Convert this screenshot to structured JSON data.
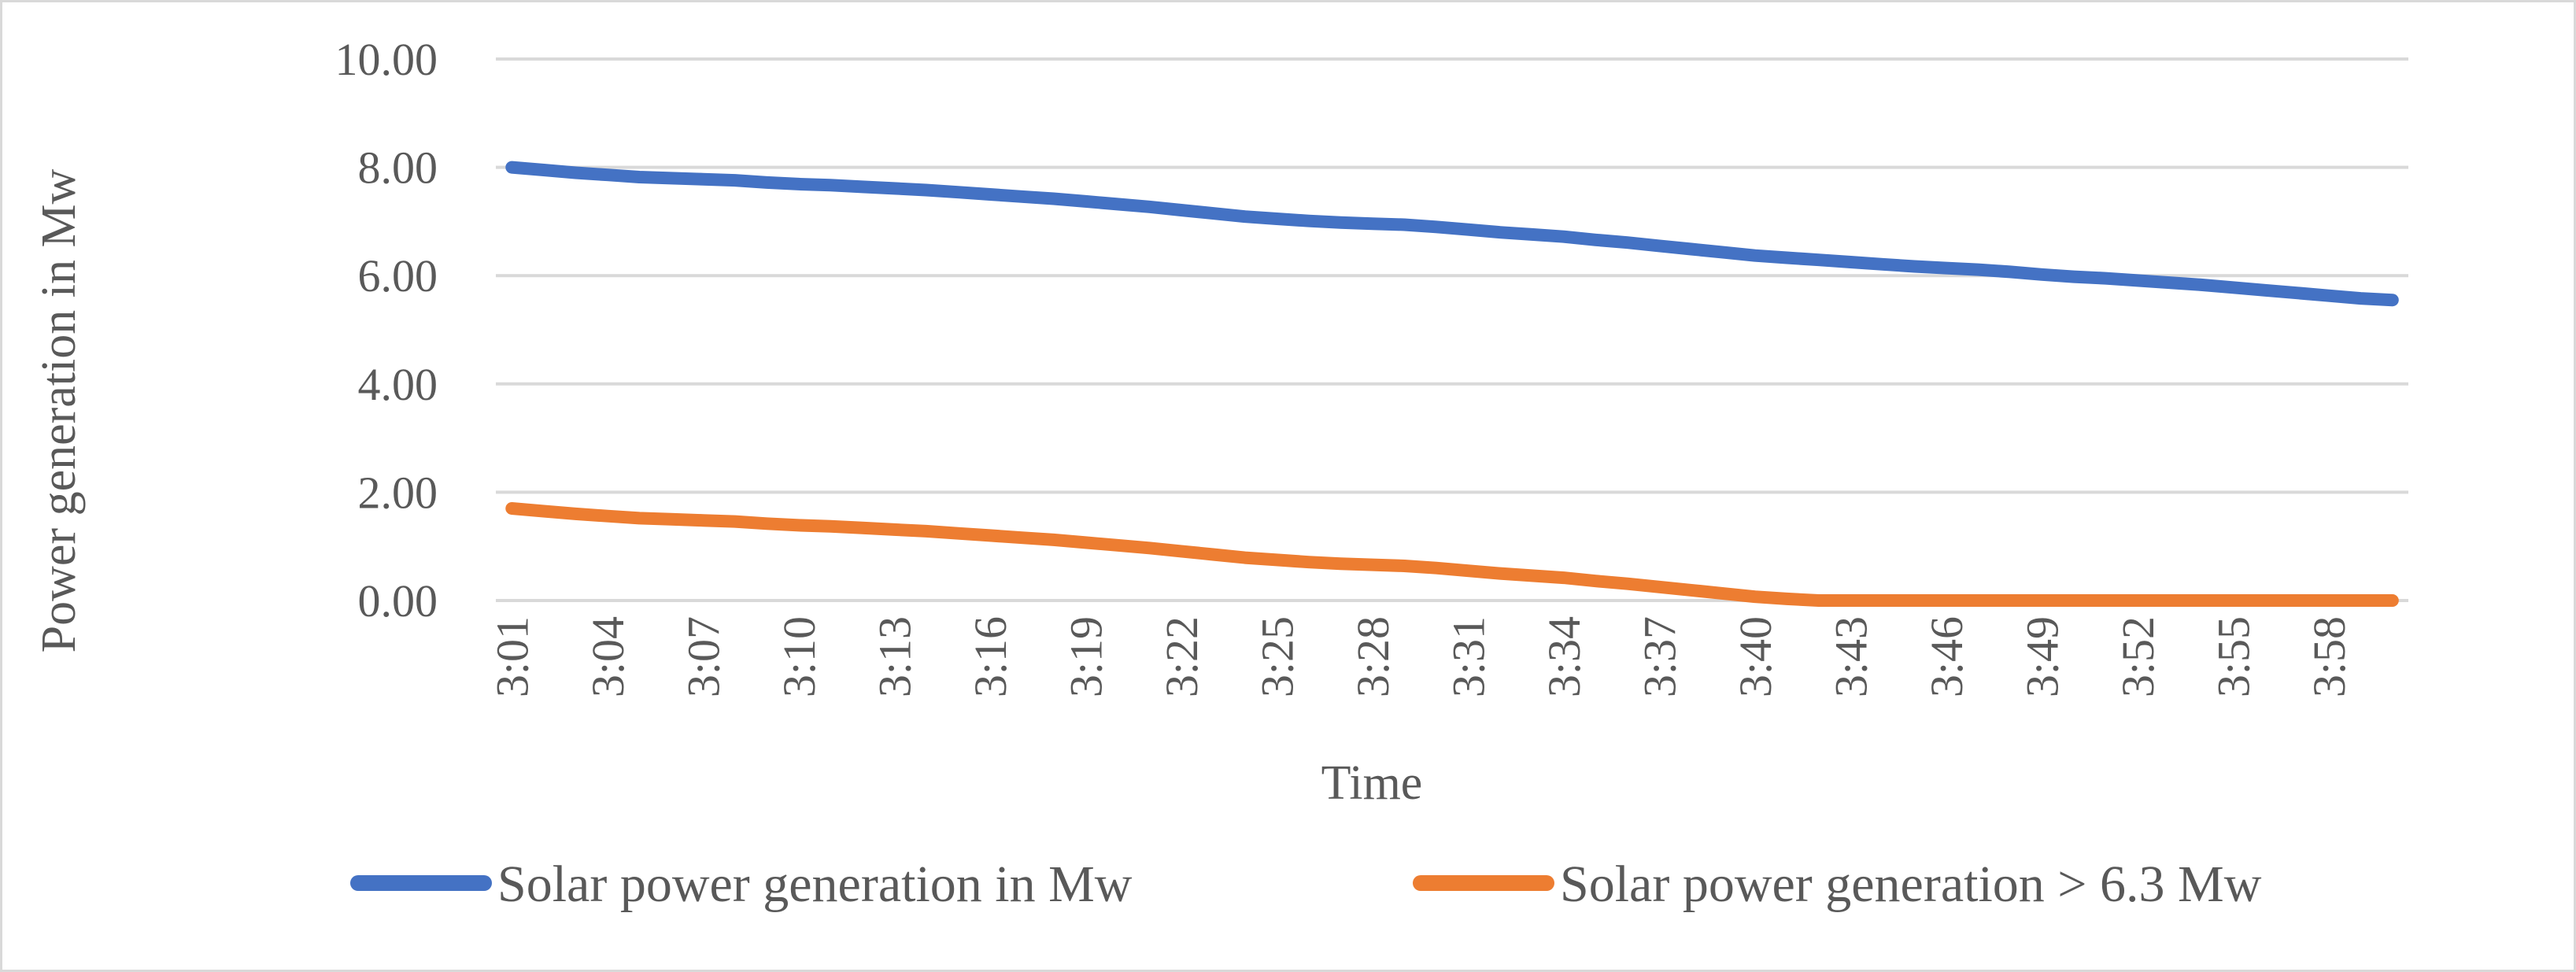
{
  "chart_data": {
    "type": "line",
    "title": "",
    "xlabel": "Time",
    "ylabel": "Power generation in Mw",
    "ylim": [
      0,
      10
    ],
    "yticks": [
      "0.00",
      "2.00",
      "4.00",
      "6.00",
      "8.00",
      "10.00"
    ],
    "ytick_values": [
      0,
      2,
      4,
      6,
      8,
      10
    ],
    "x": [
      "3:01",
      "3:02",
      "3:03",
      "3:04",
      "3:05",
      "3:06",
      "3:07",
      "3:08",
      "3:09",
      "3:10",
      "3:11",
      "3:12",
      "3:13",
      "3:14",
      "3:15",
      "3:16",
      "3:17",
      "3:18",
      "3:19",
      "3:20",
      "3:21",
      "3:22",
      "3:23",
      "3:24",
      "3:25",
      "3:26",
      "3:27",
      "3:28",
      "3:29",
      "3:30",
      "3:31",
      "3:32",
      "3:33",
      "3:34",
      "3:35",
      "3:36",
      "3:37",
      "3:38",
      "3:39",
      "3:40",
      "3:41",
      "3:42",
      "3:43",
      "3:44",
      "3:45",
      "3:46",
      "3:47",
      "3:48",
      "3:49",
      "3:50",
      "3:51",
      "3:52",
      "3:53",
      "3:54",
      "3:55",
      "3:56",
      "3:57",
      "3:58",
      "3:59",
      "4:00"
    ],
    "xtick_labels": [
      "3:01",
      "3:04",
      "3:07",
      "3:10",
      "3:13",
      "3:16",
      "3:19",
      "3:22",
      "3:25",
      "3:28",
      "3:31",
      "3:34",
      "3:37",
      "3:40",
      "3:43",
      "3:46",
      "3:49",
      "3:52",
      "3:55",
      "3:58"
    ],
    "grid": true,
    "legend_position": "bottom",
    "series": [
      {
        "name": "Solar power generation in Mw",
        "color": "#4472c4",
        "values": [
          8.0,
          7.95,
          7.9,
          7.86,
          7.82,
          7.8,
          7.78,
          7.76,
          7.72,
          7.69,
          7.67,
          7.64,
          7.61,
          7.58,
          7.54,
          7.5,
          7.46,
          7.42,
          7.37,
          7.32,
          7.27,
          7.21,
          7.15,
          7.09,
          7.05,
          7.01,
          6.98,
          6.96,
          6.94,
          6.9,
          6.85,
          6.8,
          6.76,
          6.72,
          6.66,
          6.61,
          6.55,
          6.49,
          6.43,
          6.37,
          6.33,
          6.29,
          6.25,
          6.21,
          6.17,
          6.14,
          6.11,
          6.07,
          6.02,
          5.98,
          5.95,
          5.91,
          5.87,
          5.83,
          5.78,
          5.73,
          5.68,
          5.63,
          5.58,
          5.55
        ]
      },
      {
        "name": "Solar power generation > 6.3 Mw",
        "color": "#ed7d31",
        "values": [
          1.7,
          1.65,
          1.6,
          1.56,
          1.52,
          1.5,
          1.48,
          1.46,
          1.42,
          1.39,
          1.37,
          1.34,
          1.31,
          1.28,
          1.24,
          1.2,
          1.16,
          1.12,
          1.07,
          1.02,
          0.97,
          0.91,
          0.85,
          0.79,
          0.75,
          0.71,
          0.68,
          0.66,
          0.64,
          0.6,
          0.55,
          0.5,
          0.46,
          0.42,
          0.36,
          0.31,
          0.25,
          0.19,
          0.13,
          0.07,
          0.03,
          0.0,
          0.0,
          0.0,
          0.0,
          0.0,
          0.0,
          0.0,
          0.0,
          0.0,
          0.0,
          0.0,
          0.0,
          0.0,
          0.0,
          0.0,
          0.0,
          0.0,
          0.0,
          0.0
        ]
      }
    ]
  }
}
